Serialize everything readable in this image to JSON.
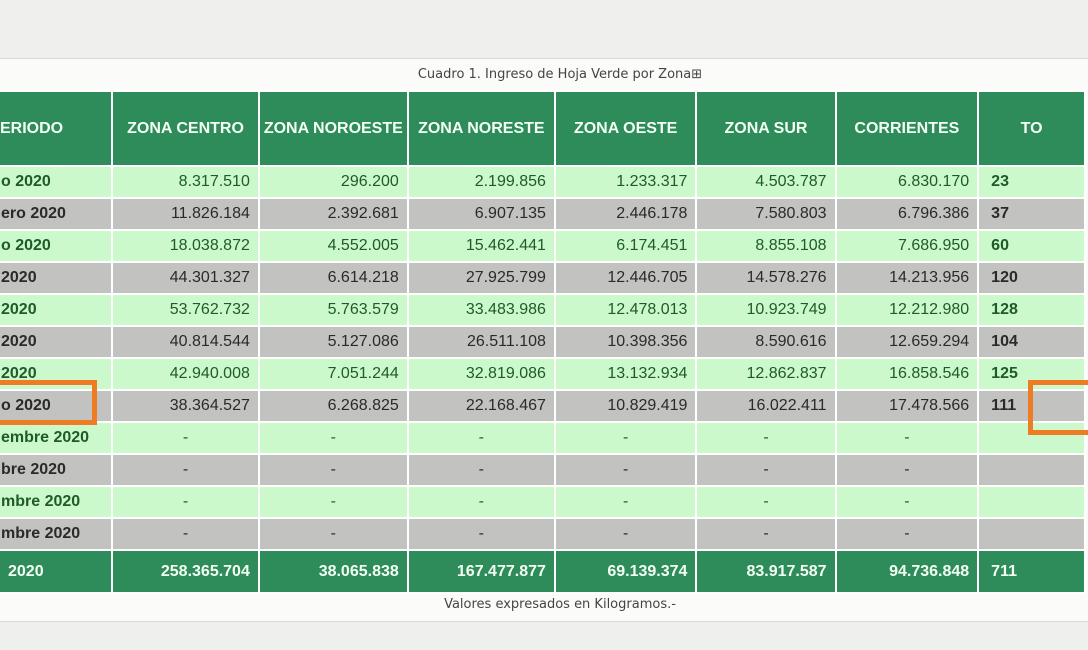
{
  "caption": "Cuadro 1. Ingreso de Hoja Verde por Zona⊞",
  "footer": "Valores expresados en Kilogramos.-",
  "colors": {
    "header": "#2e8c5a",
    "row_light": "#ccf9cc",
    "row_grey": "#c2c2c0",
    "highlight": "#ee7c24"
  },
  "headers": [
    "ERIODO",
    "ZONA CENTRO",
    "ZONA NOROESTE",
    "ZONA NORESTE",
    "ZONA OESTE",
    "ZONA SUR",
    "CORRIENTES",
    "TO"
  ],
  "rows": [
    {
      "period": "o 2020",
      "values": [
        "8.317.510",
        "296.200",
        "2.199.856",
        "1.233.317",
        "4.503.787",
        "6.830.170"
      ],
      "total": "23"
    },
    {
      "period": "ero 2020",
      "values": [
        "11.826.184",
        "2.392.681",
        "6.907.135",
        "2.446.178",
        "7.580.803",
        "6.796.386"
      ],
      "total": "37"
    },
    {
      "period": "o 2020",
      "values": [
        "18.038.872",
        "4.552.005",
        "15.462.441",
        "6.174.451",
        "8.855.108",
        "7.686.950"
      ],
      "total": "60"
    },
    {
      "period": "2020",
      "values": [
        "44.301.327",
        "6.614.218",
        "27.925.799",
        "12.446.705",
        "14.578.276",
        "14.213.956"
      ],
      "total": "120"
    },
    {
      "period": " 2020",
      "values": [
        "53.762.732",
        "5.763.579",
        "33.483.986",
        "12.478.013",
        "10.923.749",
        "12.212.980"
      ],
      "total": "128"
    },
    {
      "period": " 2020",
      "values": [
        "40.814.544",
        "5.127.086",
        "26.511.108",
        "10.398.356",
        "8.590.616",
        "12.659.294"
      ],
      "total": "104"
    },
    {
      "period": "2020",
      "values": [
        "42.940.008",
        "7.051.244",
        "32.819.086",
        "13.132.934",
        "12.862.837",
        "16.858.546"
      ],
      "total": "125"
    },
    {
      "period": "o 2020",
      "values": [
        "38.364.527",
        "6.268.825",
        "22.168.467",
        "10.829.419",
        "16.022.411",
        "17.478.566"
      ],
      "total": "111"
    },
    {
      "period": "embre 2020",
      "values": [
        "-",
        "-",
        "-",
        "-",
        "-",
        "-"
      ],
      "total": ""
    },
    {
      "period": "bre 2020",
      "values": [
        "-",
        "-",
        "-",
        "-",
        "-",
        "-"
      ],
      "total": ""
    },
    {
      "period": "mbre 2020",
      "values": [
        "-",
        "-",
        "-",
        "-",
        "-",
        "-"
      ],
      "total": ""
    },
    {
      "period": "mbre 2020",
      "values": [
        "-",
        "-",
        "-",
        "-",
        "-",
        "-"
      ],
      "total": ""
    }
  ],
  "totals": {
    "period": " 2020",
    "values": [
      "258.365.704",
      "38.065.838",
      "167.477.877",
      "69.139.374",
      "83.917.587",
      "94.736.848"
    ],
    "total": "711"
  }
}
